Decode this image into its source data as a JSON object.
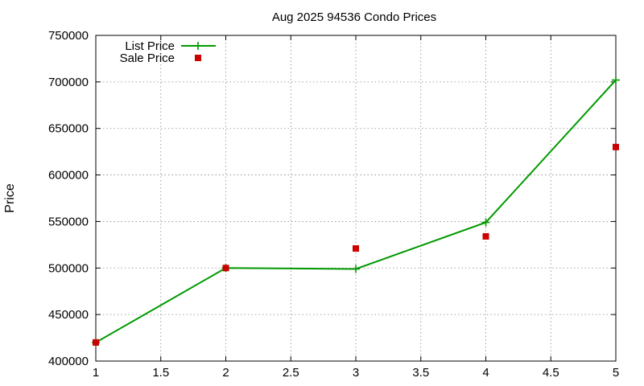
{
  "chart_data": {
    "type": "line",
    "title": "Aug 2025 94536 Condo Prices",
    "xlabel": "",
    "ylabel": "Price",
    "xlim": [
      1,
      5
    ],
    "ylim": [
      400000,
      750000
    ],
    "xticks": [
      "1",
      "1.5",
      "2",
      "2.5",
      "3",
      "3.5",
      "4",
      "4.5",
      "5"
    ],
    "xtick_values": [
      1,
      1.5,
      2,
      2.5,
      3,
      3.5,
      4,
      4.5,
      5
    ],
    "yticks": [
      "400000",
      "450000",
      "500000",
      "550000",
      "600000",
      "650000",
      "700000",
      "750000"
    ],
    "ytick_values": [
      400000,
      450000,
      500000,
      550000,
      600000,
      650000,
      700000,
      750000
    ],
    "grid": true,
    "legend_position": "top-left",
    "series": [
      {
        "name": "List Price",
        "style": "line-points",
        "marker": "plus",
        "color": "#009900",
        "x": [
          1,
          2,
          3,
          4,
          5
        ],
        "values": [
          420000,
          500000,
          499000,
          549000,
          702000
        ]
      },
      {
        "name": "Sale Price",
        "style": "points",
        "marker": "square",
        "color": "#cc0000",
        "x": [
          1,
          2,
          3,
          4,
          5
        ],
        "values": [
          420000,
          500000,
          521000,
          534000,
          630000
        ]
      }
    ]
  }
}
